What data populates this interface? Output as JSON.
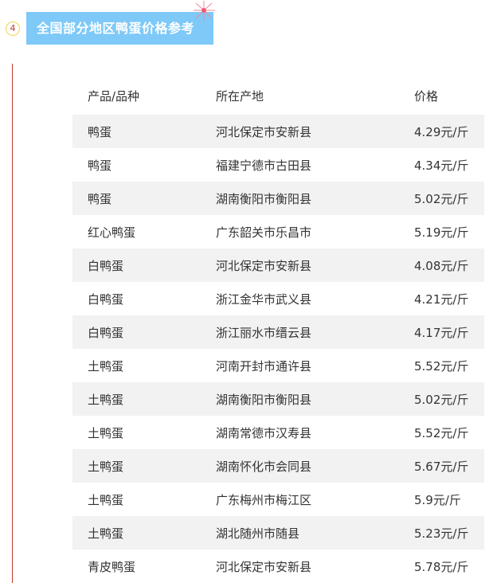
{
  "section": {
    "number": "4",
    "title": "全国部分地区鸭蛋价格参考",
    "accent": "#7ec9f8"
  },
  "table": {
    "headers": [
      "产品/品种",
      "所在产地",
      "价格"
    ],
    "rows": [
      [
        "鸭蛋",
        "河北保定市安新县",
        "4.29元/斤"
      ],
      [
        "鸭蛋",
        "福建宁德市古田县",
        "4.34元/斤"
      ],
      [
        "鸭蛋",
        "湖南衡阳市衡阳县",
        "5.02元/斤"
      ],
      [
        "红心鸭蛋",
        "广东韶关市乐昌市",
        "5.19元/斤"
      ],
      [
        "白鸭蛋",
        "河北保定市安新县",
        "4.08元/斤"
      ],
      [
        "白鸭蛋",
        "浙江金华市武义县",
        "4.21元/斤"
      ],
      [
        "白鸭蛋",
        "浙江丽水市缙云县",
        "4.17元/斤"
      ],
      [
        "土鸭蛋",
        "河南开封市通许县",
        "5.52元/斤"
      ],
      [
        "土鸭蛋",
        "湖南衡阳市衡阳县",
        "5.02元/斤"
      ],
      [
        "土鸭蛋",
        "湖南常德市汉寿县",
        "5.52元/斤"
      ],
      [
        "土鸭蛋",
        "湖南怀化市会同县",
        "5.67元/斤"
      ],
      [
        "土鸭蛋",
        "广东梅州市梅江区",
        "5.9元/斤"
      ],
      [
        "土鸭蛋",
        "湖北随州市随县",
        "5.23元/斤"
      ],
      [
        "青皮鸭蛋",
        "河北保定市安新县",
        "5.78元/斤"
      ]
    ]
  }
}
